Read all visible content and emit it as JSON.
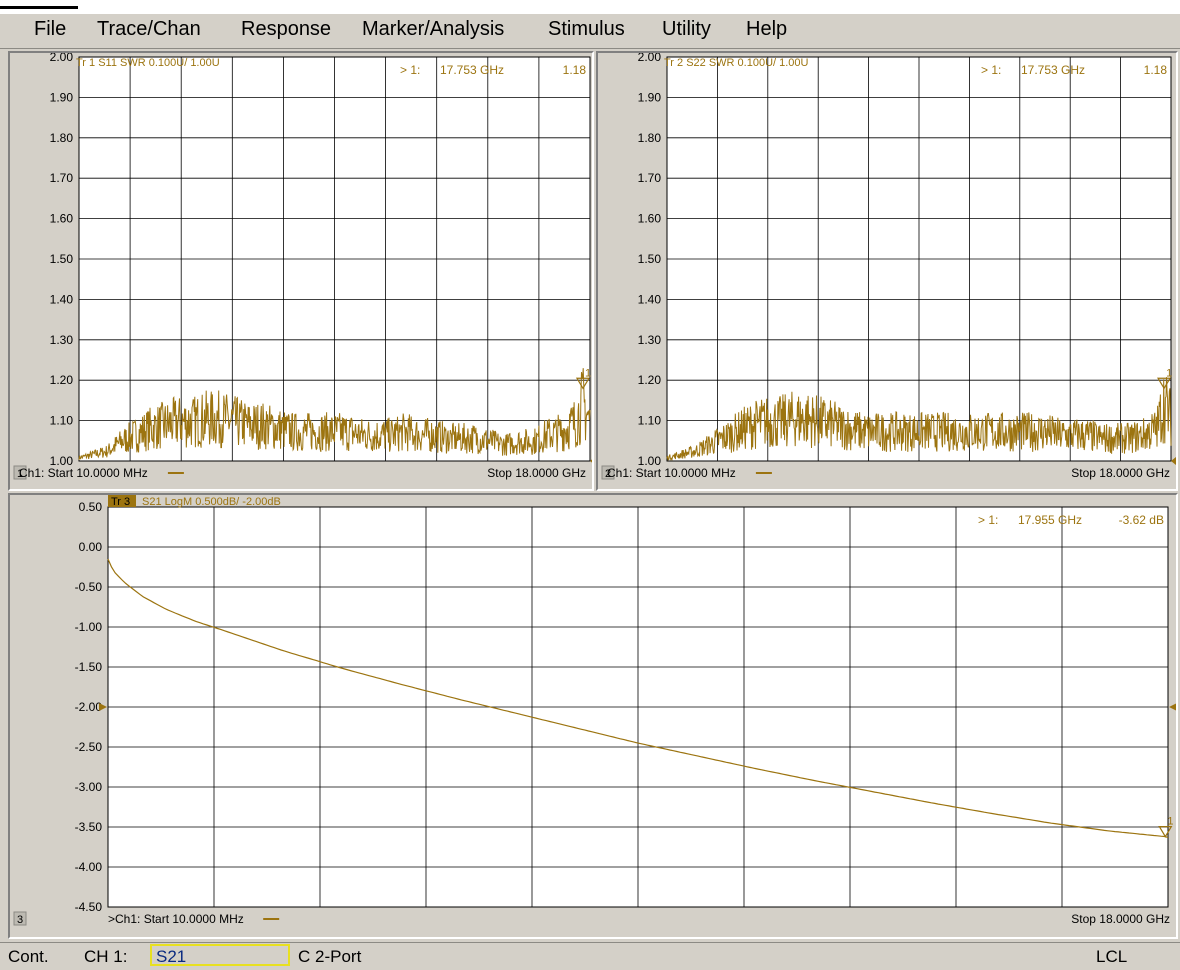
{
  "menu": [
    "File",
    "Trace/Chan",
    "Response",
    "Marker/Analysis",
    "Stimulus",
    "Utility",
    "Help"
  ],
  "colors": {
    "trace": "#9c7410",
    "grid": "#000000",
    "plot_bg": "#ffffff",
    "panel_bg": "#d4d0c8"
  },
  "windows": [
    {
      "number": "1",
      "trace_header": "Tr 1  S11 SWR 0.100U/  1.00U",
      "marker": {
        "prefix": "> 1:",
        "freq": "17.753 GHz",
        "value": "1.18",
        "label": "1"
      },
      "y_ticks": [
        "2.00",
        "1.90",
        "1.80",
        "1.70",
        "1.60",
        "1.50",
        "1.40",
        "1.30",
        "1.20",
        "1.10",
        "1.00"
      ],
      "start_label": "Ch1: Start  10.0000 MHz",
      "stop_label": "Stop  18.0000 GHz",
      "chart_data": {
        "type": "line",
        "title": "Tr 1  S11 SWR 0.100U/  1.00U",
        "x_unit": "GHz",
        "xlim": [
          0.01,
          18.0
        ],
        "ylim": [
          1.0,
          2.0
        ],
        "grid": true,
        "series": [
          {
            "name": "S11 SWR",
            "x": [
              0.01,
              0.5,
              1.0,
              1.5,
              2.0,
              2.5,
              3.0,
              3.5,
              4.0,
              4.5,
              5.0,
              5.5,
              6.0,
              6.5,
              7.0,
              7.5,
              8.0,
              8.5,
              9.0,
              9.5,
              10.0,
              10.5,
              11.0,
              11.5,
              12.0,
              12.5,
              13.0,
              13.5,
              14.0,
              14.5,
              15.0,
              15.5,
              16.0,
              16.5,
              17.0,
              17.5,
              17.753,
              18.0
            ],
            "y": [
              1.01,
              1.02,
              1.03,
              1.06,
              1.08,
              1.1,
              1.11,
              1.12,
              1.12,
              1.13,
              1.13,
              1.12,
              1.11,
              1.11,
              1.1,
              1.09,
              1.09,
              1.09,
              1.09,
              1.09,
              1.08,
              1.08,
              1.08,
              1.09,
              1.08,
              1.08,
              1.07,
              1.07,
              1.07,
              1.06,
              1.05,
              1.06,
              1.06,
              1.08,
              1.09,
              1.12,
              1.18,
              1.12
            ]
          }
        ],
        "ripple": 0.045,
        "marker": {
          "x": 17.753,
          "y": 1.18
        }
      }
    },
    {
      "number": "2",
      "trace_header": "Tr 2  S22 SWR 0.100U/  1.00U",
      "marker": {
        "prefix": "> 1:",
        "freq": "17.753 GHz",
        "value": "1.18",
        "label": "1"
      },
      "y_ticks": [
        "2.00",
        "1.90",
        "1.80",
        "1.70",
        "1.60",
        "1.50",
        "1.40",
        "1.30",
        "1.20",
        "1.10",
        "1.00"
      ],
      "start_label": "Ch1: Start  10.0000 MHz",
      "stop_label": "Stop  18.0000 GHz",
      "chart_data": {
        "type": "line",
        "title": "Tr 2  S22 SWR 0.100U/  1.00U",
        "x_unit": "GHz",
        "xlim": [
          0.01,
          18.0
        ],
        "ylim": [
          1.0,
          2.0
        ],
        "grid": true,
        "series": [
          {
            "name": "S22 SWR",
            "x": [
              0.01,
              0.5,
              1.0,
              1.5,
              2.0,
              2.5,
              3.0,
              3.5,
              4.0,
              4.5,
              5.0,
              5.5,
              6.0,
              6.5,
              7.0,
              7.5,
              8.0,
              8.5,
              9.0,
              9.5,
              10.0,
              10.5,
              11.0,
              11.5,
              12.0,
              12.5,
              13.0,
              13.5,
              14.0,
              14.5,
              15.0,
              15.5,
              16.0,
              16.5,
              17.0,
              17.5,
              17.753,
              18.0
            ],
            "y": [
              1.01,
              1.02,
              1.03,
              1.05,
              1.07,
              1.09,
              1.11,
              1.12,
              1.12,
              1.13,
              1.13,
              1.12,
              1.11,
              1.1,
              1.09,
              1.09,
              1.09,
              1.09,
              1.09,
              1.09,
              1.09,
              1.09,
              1.09,
              1.09,
              1.09,
              1.09,
              1.09,
              1.09,
              1.08,
              1.08,
              1.08,
              1.07,
              1.07,
              1.07,
              1.08,
              1.1,
              1.18,
              1.13
            ]
          }
        ],
        "ripple": 0.045,
        "marker": {
          "x": 17.753,
          "y": 1.18
        }
      }
    },
    {
      "number": "3",
      "trace_header_box": "Tr 3",
      "trace_header": "S21 LogM 0.500dB/  -2.00dB",
      "marker": {
        "prefix": "> 1:",
        "freq": "17.955 GHz",
        "value": "-3.62 dB",
        "label": "1"
      },
      "y_ticks": [
        "0.50",
        "0.00",
        "-0.50",
        "-1.00",
        "-1.50",
        "-2.00",
        "-2.50",
        "-3.00",
        "-3.50",
        "-4.00",
        "-4.50"
      ],
      "start_label": ">Ch1: Start  10.0000 MHz",
      "stop_label": "Stop  18.0000 GHz",
      "chart_data": {
        "type": "line",
        "title": "S21 LogM 0.500dB/  -2.00dB",
        "x_unit": "GHz",
        "y_unit": "dB",
        "xlim": [
          0.01,
          18.0
        ],
        "ylim": [
          -4.5,
          0.5
        ],
        "reference_level": -2.0,
        "grid": true,
        "series": [
          {
            "name": "S21 LogM",
            "x": [
              0.01,
              0.1,
              0.3,
              0.6,
              1.0,
              1.5,
              2.0,
              3.0,
              4.0,
              5.0,
              6.0,
              7.0,
              8.0,
              9.0,
              10.0,
              11.0,
              12.0,
              13.0,
              14.0,
              15.0,
              16.0,
              17.0,
              17.955,
              18.0
            ],
            "y": [
              -0.15,
              -0.3,
              -0.45,
              -0.62,
              -0.78,
              -0.93,
              -1.05,
              -1.3,
              -1.52,
              -1.72,
              -1.91,
              -2.09,
              -2.27,
              -2.45,
              -2.61,
              -2.77,
              -2.92,
              -3.06,
              -3.2,
              -3.33,
              -3.45,
              -3.55,
              -3.62,
              -3.63
            ]
          }
        ],
        "ripple": 0.0,
        "marker": {
          "x": 17.955,
          "y": -3.62
        }
      }
    }
  ],
  "status": {
    "mode": "Cont.",
    "channel": "CH 1:",
    "measurement": "S21",
    "cal": "C  2-Port",
    "remote": "LCL"
  }
}
